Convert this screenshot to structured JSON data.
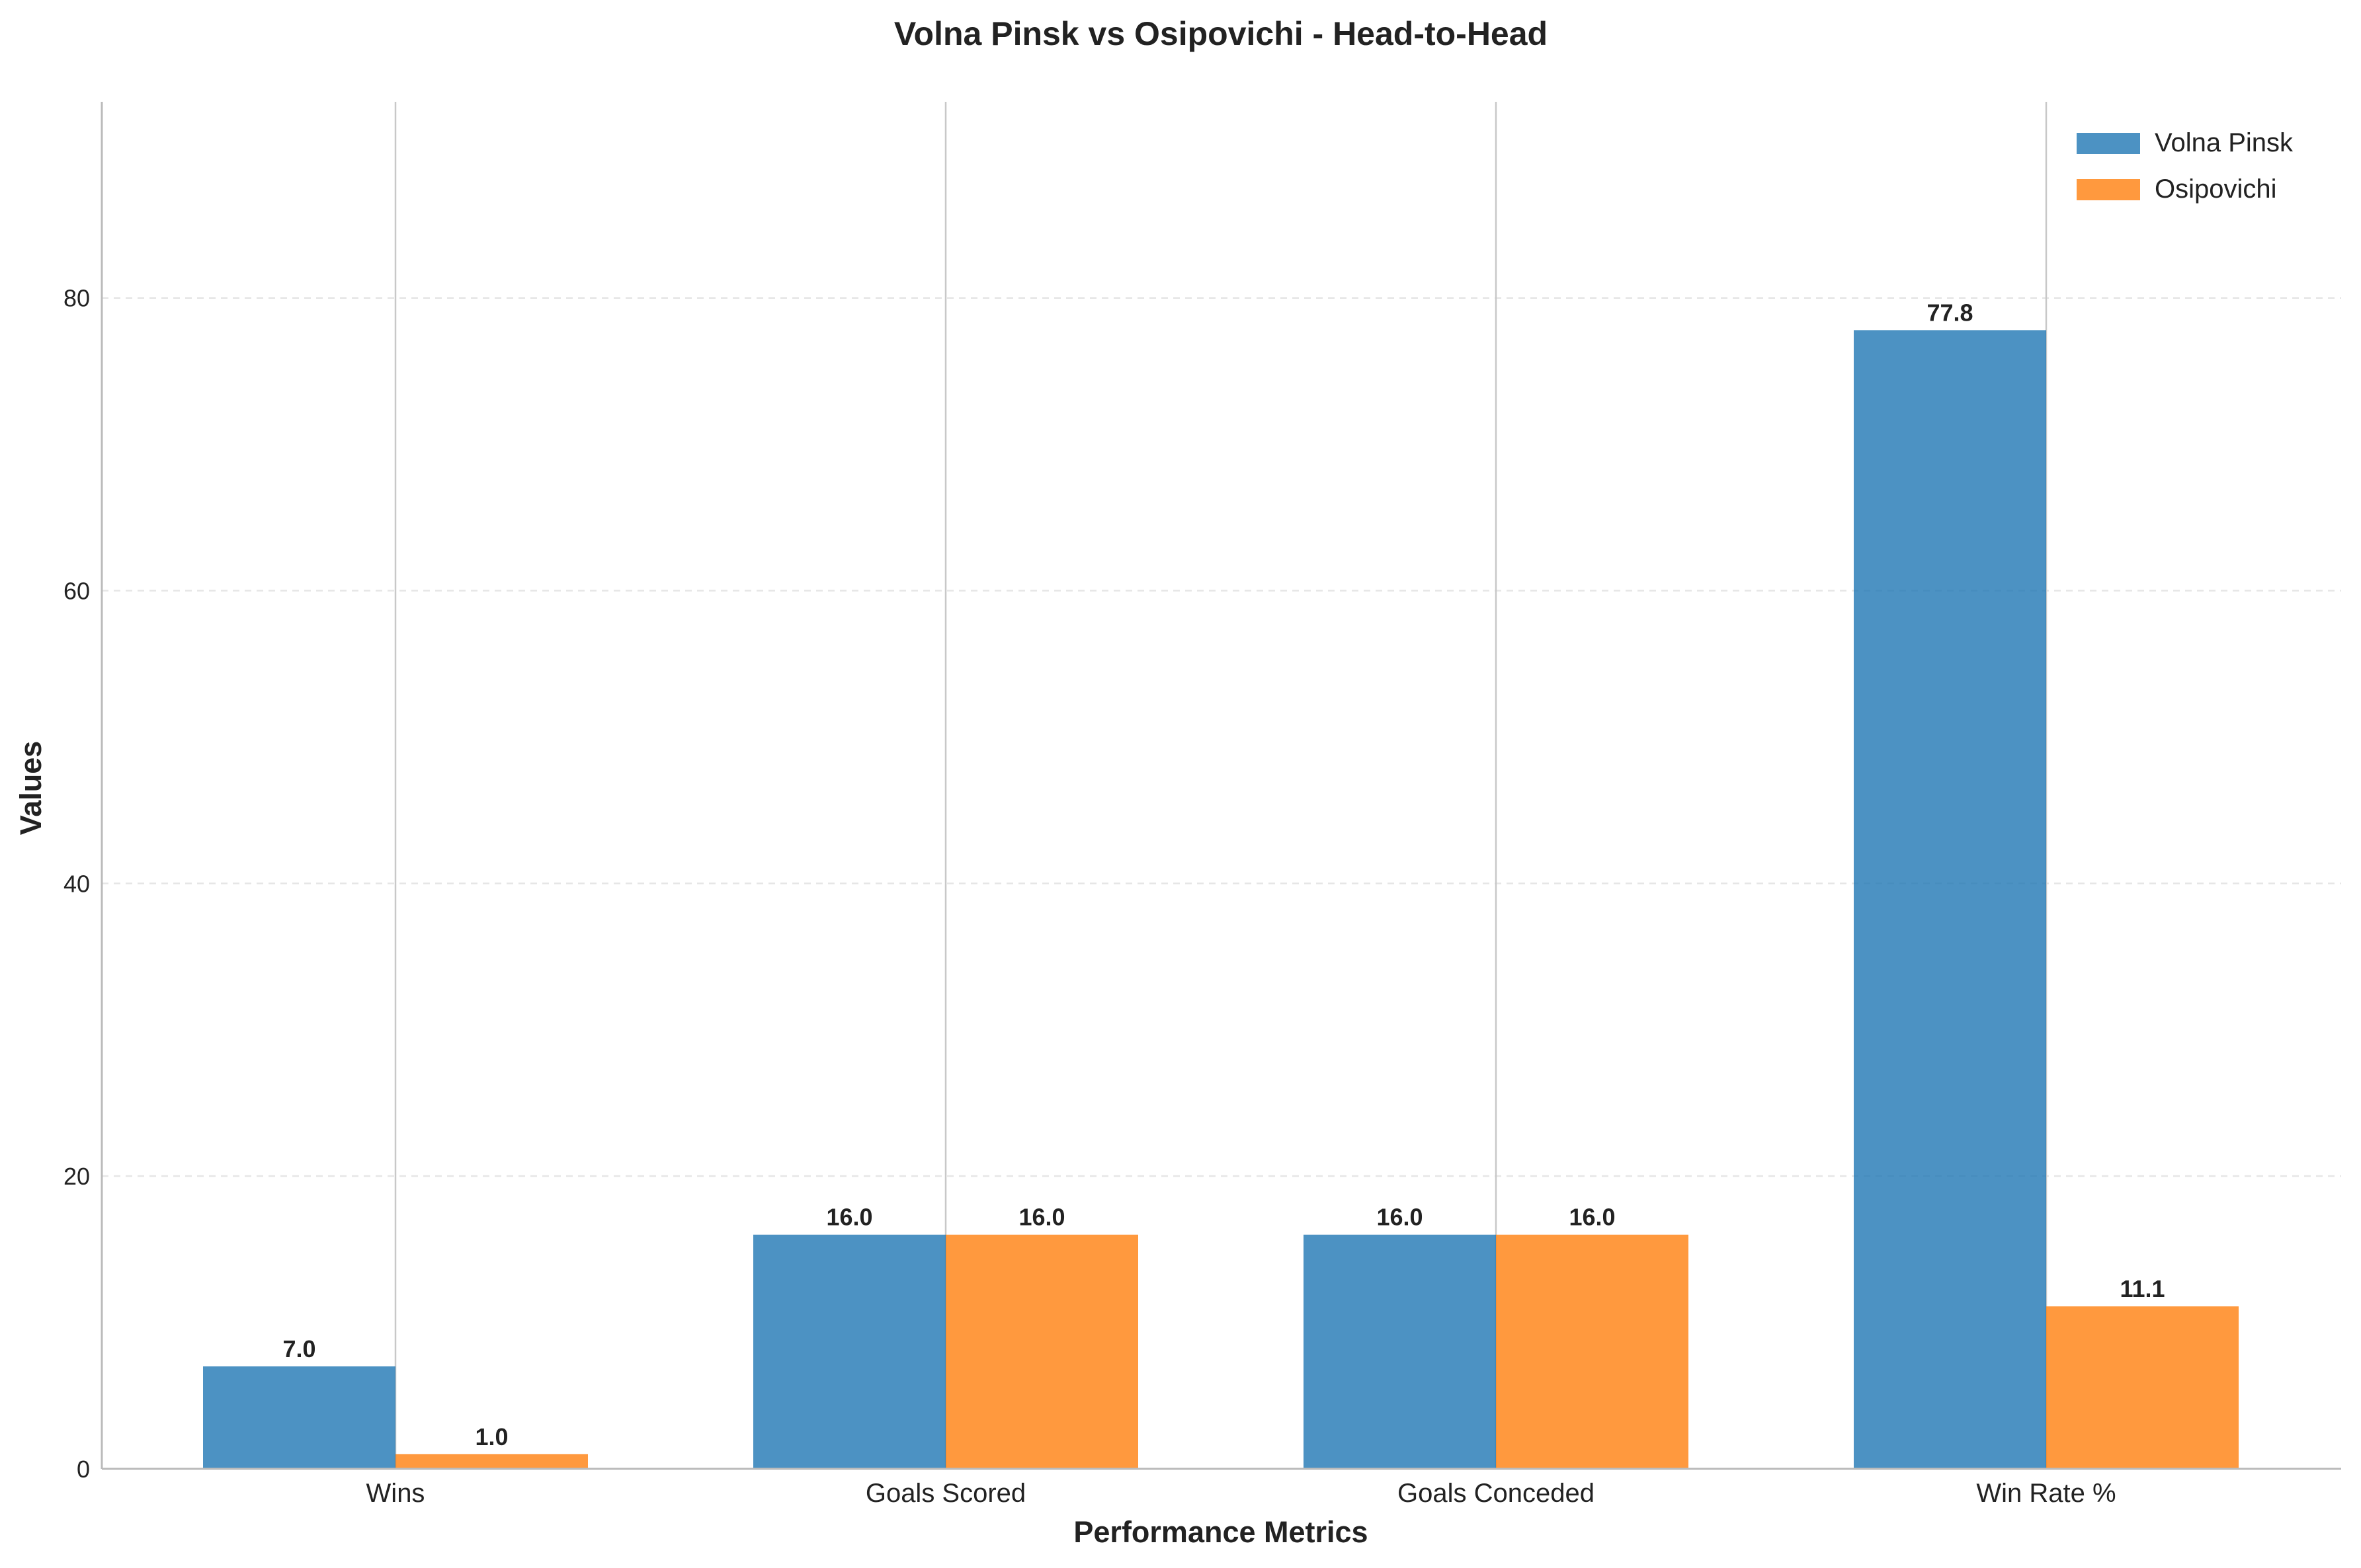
{
  "chart_data": {
    "type": "bar",
    "title": "Volna Pinsk vs Osipovichi - Head-to-Head",
    "xlabel": "Performance Metrics",
    "ylabel": "Values",
    "categories": [
      "Wins",
      "Goals Scored",
      "Goals Conceded",
      "Win Rate %"
    ],
    "series": [
      {
        "name": "Volna Pinsk",
        "values": [
          7.0,
          16.0,
          16.0,
          77.8
        ],
        "labels": [
          "7.0",
          "16.0",
          "16.0",
          "77.8"
        ],
        "color": "#1f77b4"
      },
      {
        "name": "Osipovichi",
        "values": [
          1.0,
          16.0,
          16.0,
          11.1
        ],
        "labels": [
          "1.0",
          "16.0",
          "16.0",
          "11.1"
        ],
        "color": "#ff7f0e"
      }
    ],
    "ylim": [
      0,
      93.4
    ],
    "yticks": [
      0,
      20,
      40,
      60,
      80
    ],
    "ytick_labels": [
      "0",
      "20",
      "40",
      "60",
      "80"
    ],
    "grid": "y dashed, x solid at category centers",
    "legend_position": "top-right"
  }
}
